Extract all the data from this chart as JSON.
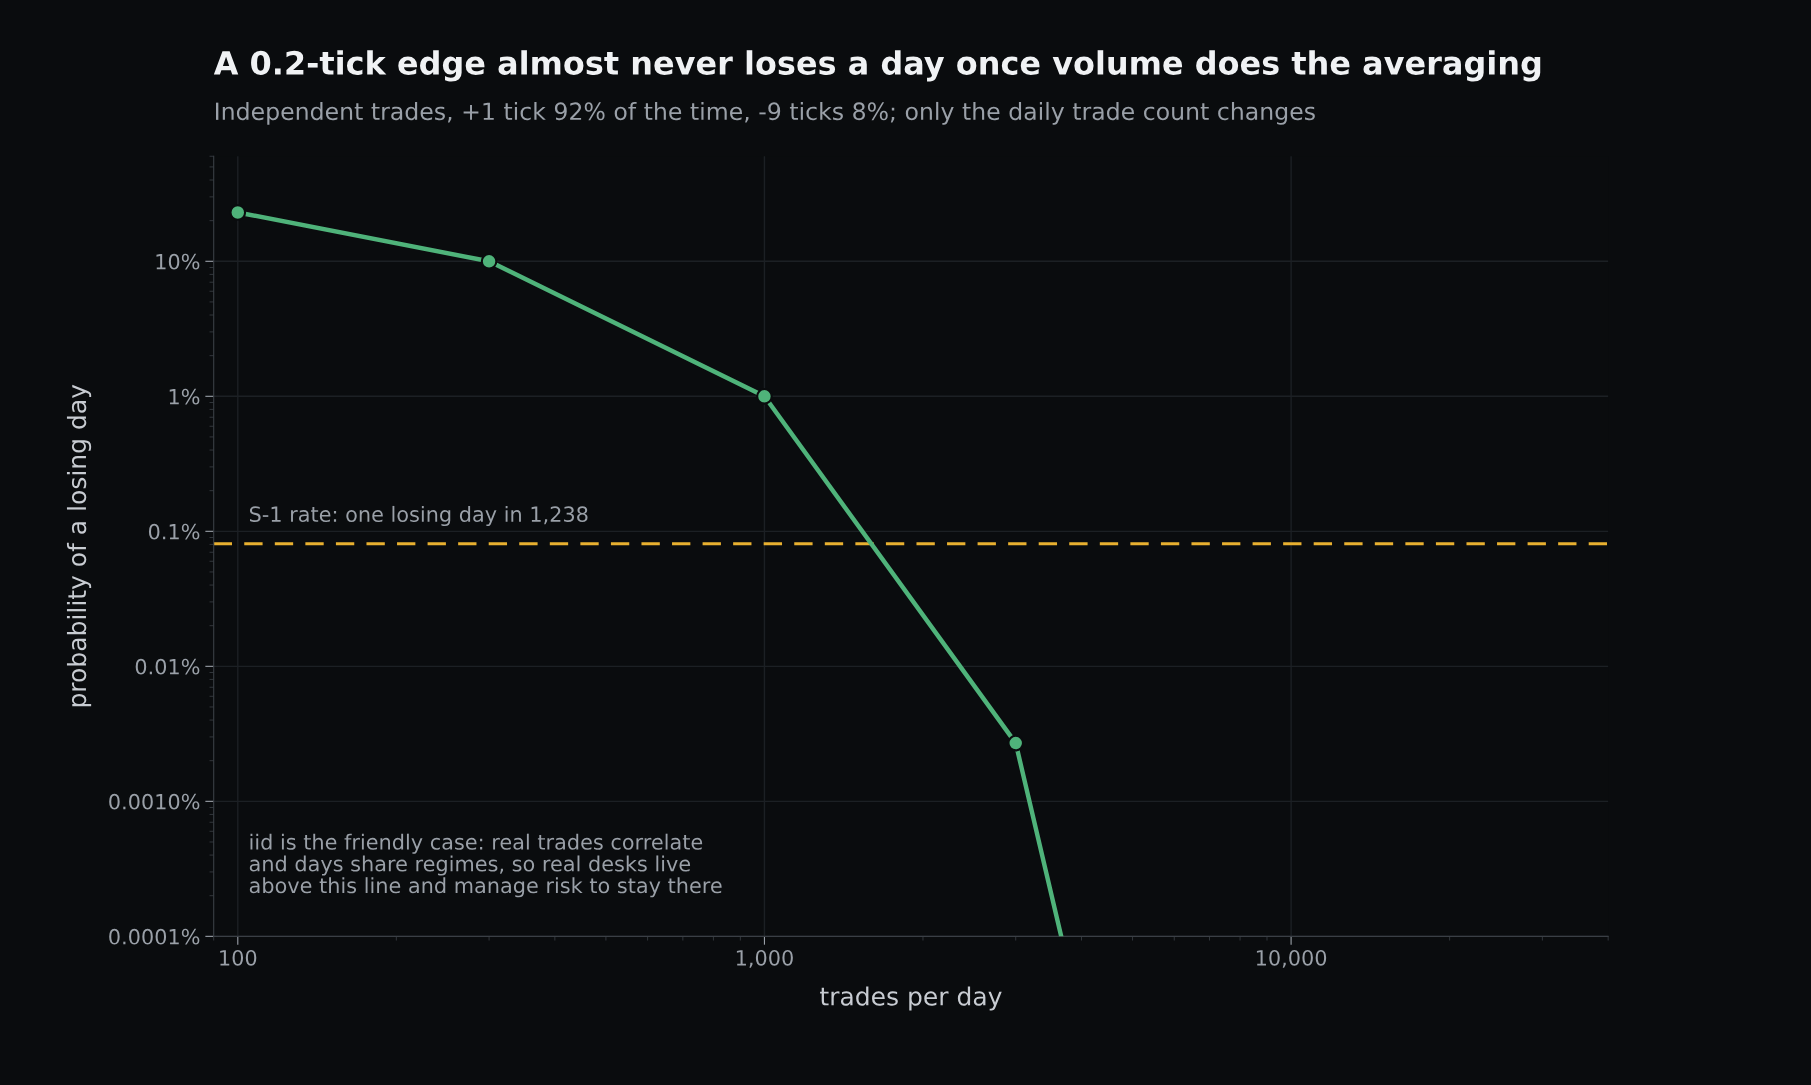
{
  "chart_data": {
    "type": "line",
    "title": "A 0.2-tick edge almost never loses a day once volume does the averaging",
    "subtitle": "Independent trades, +1 tick 92% of the time, -9 ticks 8%; only the daily trade count changes",
    "xlabel": "trades per day",
    "ylabel": "probability of a losing day",
    "series": [
      {
        "type": "line",
        "color": "#4fb37a",
        "x": [
          100,
          300,
          1000,
          3000,
          3660
        ],
        "values": [
          23,
          10,
          1,
          0.0027,
          0.0001
        ],
        "marker": "none"
      },
      {
        "type": "scatter",
        "color": "#4fb37a",
        "x": [
          100,
          300,
          1000,
          3000
        ],
        "values": [
          23,
          10,
          1,
          0.0027
        ],
        "marker": "circle"
      }
    ],
    "log": "xy",
    "xlim": [
      90,
      40000
    ],
    "ylim": [
      0.0001,
      60
    ],
    "xticks": [
      {
        "value": 100,
        "label": "100"
      },
      {
        "value": 1000,
        "label": "1,000"
      },
      {
        "value": 10000,
        "label": "10,000"
      }
    ],
    "yticks": [
      {
        "value": 0.0001,
        "label": "0.0001%"
      },
      {
        "value": 0.001,
        "label": "0.0010%"
      },
      {
        "value": 0.01,
        "label": "0.01%"
      },
      {
        "value": 0.1,
        "label": "0.1%"
      },
      {
        "value": 1,
        "label": "1%"
      },
      {
        "value": 10,
        "label": "10%"
      }
    ],
    "ref_lines": [
      {
        "axis": "y",
        "value": 0.081,
        "label": "S-1 rate: one losing day in 1,238",
        "color": "#e8b030",
        "line_style": "dashed"
      }
    ],
    "annotations": [
      "iid is the friendly case: real trades correlate\nand days share regimes, so real desks live\nabove this line and manage risk to stay there"
    ],
    "grid": true,
    "legend": false
  }
}
